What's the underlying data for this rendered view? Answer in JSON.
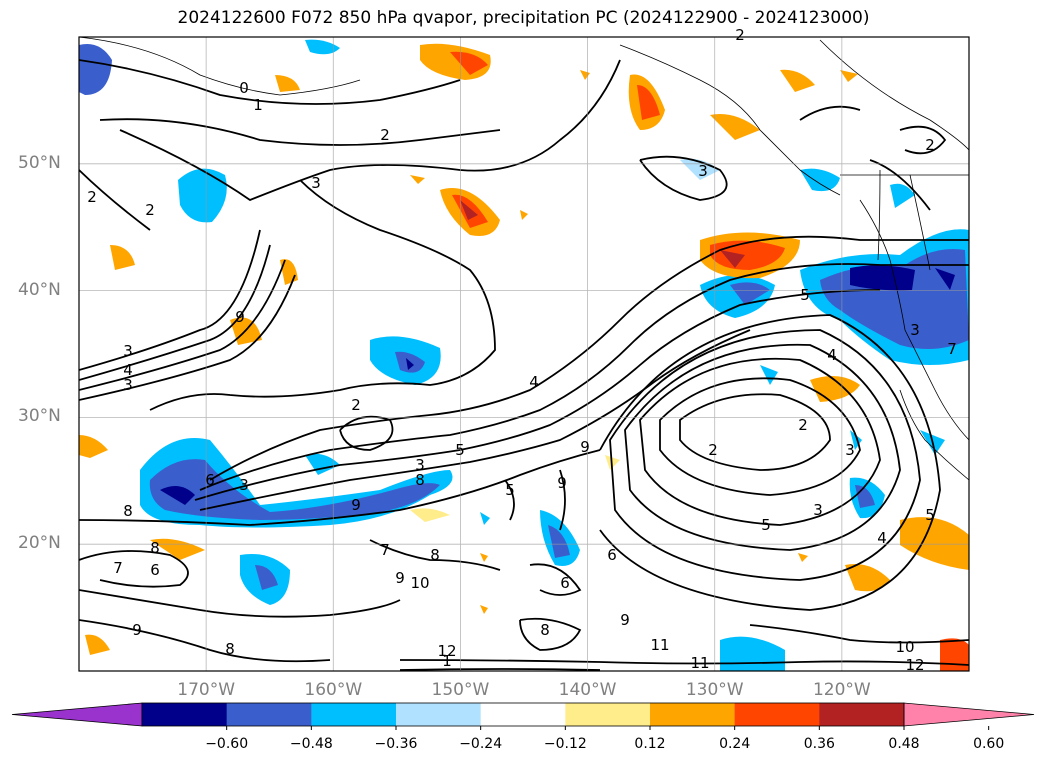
{
  "title": "2024122600 F072 850 hPa qvapor, precipitation PC (2024122900 - 2024123000)",
  "lat_labels": [
    {
      "text": "50°N",
      "lat": 50
    },
    {
      "text": "40°N",
      "lat": 40
    },
    {
      "text": "30°N",
      "lat": 30
    },
    {
      "text": "20°N",
      "lat": 20
    }
  ],
  "lon_labels": [
    {
      "text": "170°W",
      "lon": -170
    },
    {
      "text": "160°W",
      "lon": -160
    },
    {
      "text": "150°W",
      "lon": -150
    },
    {
      "text": "140°W",
      "lon": -140
    },
    {
      "text": "130°W",
      "lon": -130
    },
    {
      "text": "120°W",
      "lon": -120
    }
  ],
  "map_extent": {
    "lon": [
      -180,
      -110
    ],
    "lat": [
      10,
      60
    ]
  },
  "colorbar": {
    "ticks": [
      "−0.60",
      "−0.48",
      "−0.36",
      "−0.24",
      "−0.12",
      "0.12",
      "0.24",
      "0.36",
      "0.48",
      "0.60"
    ],
    "colors": [
      "#9a32cd",
      "#00008b",
      "#3a5fcd",
      "#00bfff",
      "#b0e2ff",
      "#ffffff",
      "#ffec8b",
      "#ffa500",
      "#ff4500",
      "#b22222",
      "#ff82ab"
    ]
  },
  "contour_labels": [
    "0",
    "1",
    "2",
    "2",
    "2",
    "3",
    "3",
    "4",
    "3",
    "9",
    "3",
    "6",
    "8",
    "2",
    "3",
    "5",
    "8",
    "9",
    "9",
    "8",
    "6",
    "7",
    "7",
    "8",
    "9",
    "10",
    "9",
    "8",
    "9",
    "6",
    "4",
    "5",
    "6",
    "9",
    "8",
    "11",
    "12",
    "1",
    "2",
    "2",
    "3",
    "4",
    "5",
    "3",
    "4",
    "5",
    "7",
    "3",
    "5",
    "2",
    "3",
    "2",
    "10",
    "12",
    "11"
  ]
}
